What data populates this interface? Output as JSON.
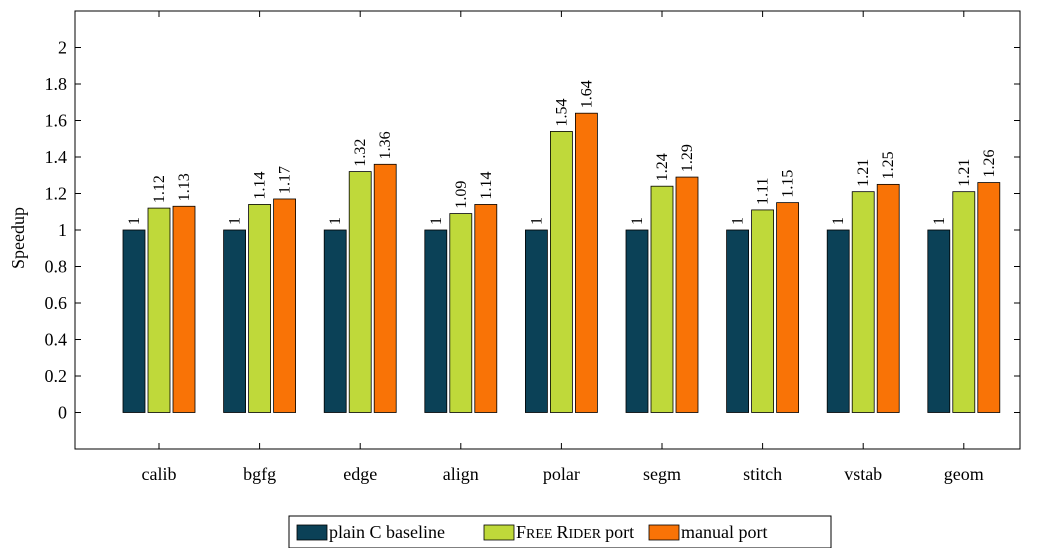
{
  "chart_data": {
    "type": "bar",
    "title": "",
    "xlabel": "",
    "ylabel": "Speedup",
    "ylim": [
      -0.2,
      2.2
    ],
    "yticks": [
      0,
      0.2,
      0.4,
      0.6,
      0.8,
      1,
      1.2,
      1.4,
      1.6,
      1.8,
      2
    ],
    "yticklabels": [
      "0",
      "0.2",
      "0.4",
      "0.6",
      "0.8",
      "1",
      "1.2",
      "1.4",
      "1.6",
      "1.8",
      "2"
    ],
    "categories": [
      "calib",
      "bgfg",
      "edge",
      "align",
      "polar",
      "segm",
      "stitch",
      "vstab",
      "geom"
    ],
    "series": [
      {
        "name": "plain C baseline",
        "color": "#0b4157",
        "values": [
          1,
          1,
          1,
          1,
          1,
          1,
          1,
          1,
          1
        ],
        "labels": [
          "1",
          "1",
          "1",
          "1",
          "1",
          "1",
          "1",
          "1",
          "1"
        ]
      },
      {
        "name": "Free Rider port",
        "color": "#bfd93a",
        "values": [
          1.12,
          1.14,
          1.32,
          1.09,
          1.54,
          1.24,
          1.11,
          1.21,
          1.21
        ],
        "labels": [
          "1.12",
          "1.14",
          "1.32",
          "1.09",
          "1.54",
          "1.24",
          "1.11",
          "1.21",
          "1.21"
        ]
      },
      {
        "name": "manual port",
        "color": "#f97306",
        "values": [
          1.13,
          1.17,
          1.36,
          1.14,
          1.64,
          1.29,
          1.15,
          1.25,
          1.26
        ],
        "labels": [
          "1.13",
          "1.17",
          "1.36",
          "1.14",
          "1.64",
          "1.29",
          "1.15",
          "1.25",
          "1.26"
        ]
      }
    ],
    "legend": {
      "position": "bottom-center",
      "entries": [
        "plain C baseline",
        "Free Rider port",
        "manual port"
      ],
      "free_rider_parts": [
        "F",
        "REE",
        "R",
        "IDER",
        "port"
      ]
    },
    "grid": false
  }
}
